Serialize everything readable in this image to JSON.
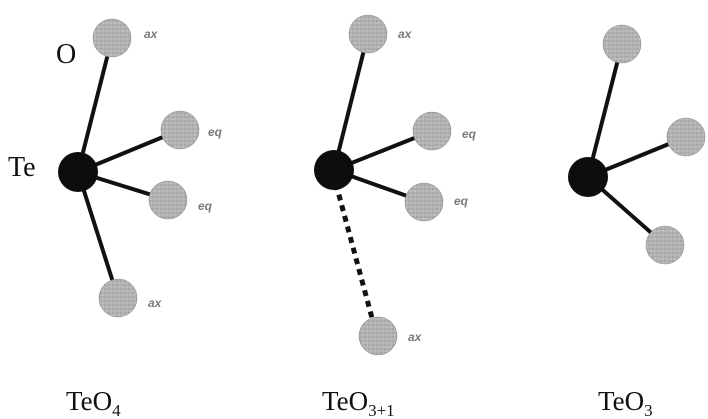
{
  "labels": {
    "oxygen": "O",
    "tellurium": "Te",
    "axial": "ax",
    "equatorial": "eq"
  },
  "structures": [
    {
      "formula_base": "TeO",
      "formula_subscript": "4"
    },
    {
      "formula_base": "TeO",
      "formula_subscript": "3+1"
    },
    {
      "formula_base": "TeO",
      "formula_subscript": "3"
    }
  ],
  "colors": {
    "tellurium_atom": "#0d0d0d",
    "oxygen_atom": "#b4b4b4",
    "bond": "#111111",
    "position_label": "#7a7a7a"
  }
}
